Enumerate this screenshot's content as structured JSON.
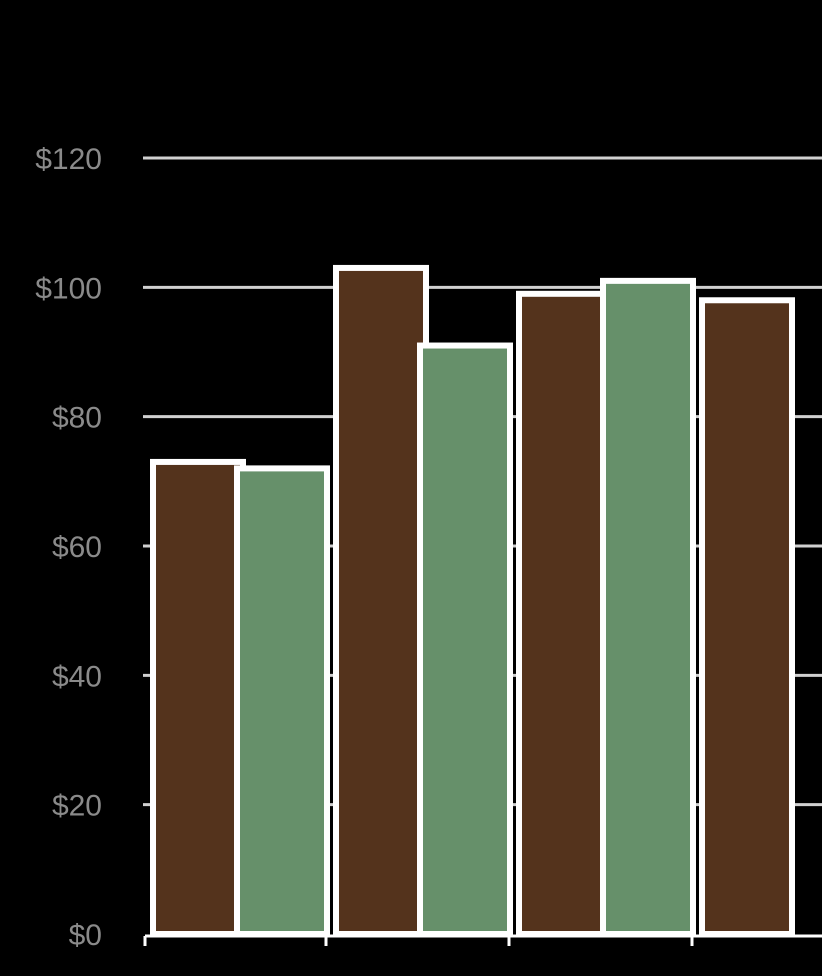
{
  "chart_data": {
    "type": "bar",
    "title": "",
    "xlabel": "",
    "ylabel": "",
    "ylim": [
      0,
      120
    ],
    "yticks": [
      0,
      20,
      40,
      60,
      80,
      100,
      120
    ],
    "ytick_labels": [
      "$0",
      "$20",
      "$40",
      "$60",
      "$80",
      "$100",
      "$120"
    ],
    "categories": [
      "",
      "",
      "",
      ""
    ],
    "series": [
      {
        "color": "#54331c",
        "values": [
          73,
          103,
          99,
          98
        ]
      },
      {
        "color": "#66906a",
        "values": [
          72,
          91,
          101,
          null
        ]
      }
    ],
    "grid": true,
    "legend": "none"
  }
}
